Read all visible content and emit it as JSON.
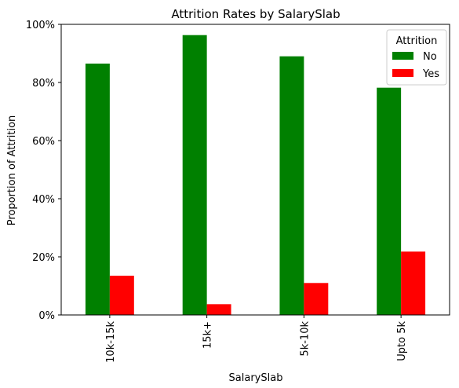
{
  "chart_data": {
    "type": "bar",
    "title": "Attrition Rates by SalarySlab",
    "xlabel": "SalarySlab",
    "ylabel": "Proportion of Attrition",
    "categories": [
      "10k-15k",
      "15k+",
      "5k-10k",
      "Upto 5k"
    ],
    "series": [
      {
        "name": "No",
        "color": "#008000",
        "values": [
          0.865,
          0.963,
          0.89,
          0.782
        ]
      },
      {
        "name": "Yes",
        "color": "#ff0000",
        "values": [
          0.135,
          0.037,
          0.11,
          0.218
        ]
      }
    ],
    "ylim": [
      0,
      1.0
    ],
    "yticks": [
      0,
      0.2,
      0.4,
      0.6,
      0.8,
      1.0
    ],
    "ytick_labels": [
      "0%",
      "20%",
      "40%",
      "60%",
      "80%",
      "100%"
    ],
    "legend": {
      "title": "Attrition",
      "placement": "top-right"
    },
    "grid": false
  }
}
